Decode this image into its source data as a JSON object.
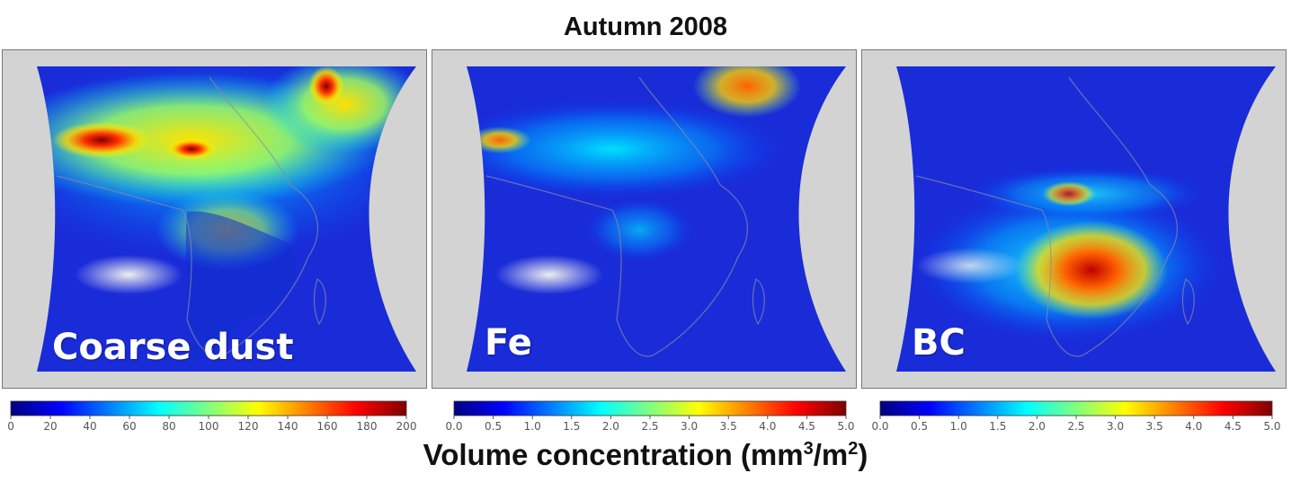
{
  "title": "Autumn 2008",
  "colors": {
    "land_mask": "#d3d3d3",
    "jet": [
      "#00007f",
      "#0000ff",
      "#007fff",
      "#00ffff",
      "#7fff7f",
      "#ffff00",
      "#ff7f00",
      "#ff0000",
      "#7f0000"
    ]
  },
  "panels": [
    {
      "label": "Coarse dust",
      "colorbar": {
        "min": 0,
        "max": 200,
        "ticks": [
          "0",
          "20",
          "40",
          "60",
          "80",
          "100",
          "120",
          "140",
          "160",
          "180",
          "200"
        ]
      }
    },
    {
      "label": "Fe",
      "colorbar": {
        "min": 0,
        "max": 5,
        "ticks": [
          "0.0",
          "0.5",
          "1.0",
          "1.5",
          "2.0",
          "2.5",
          "3.0",
          "3.5",
          "4.0",
          "4.5",
          "5.0"
        ]
      }
    },
    {
      "label": "BC",
      "colorbar": {
        "min": 0,
        "max": 5,
        "ticks": [
          "0.0",
          "0.5",
          "1.0",
          "1.5",
          "2.0",
          "2.5",
          "3.0",
          "3.5",
          "4.0",
          "4.5",
          "5.0"
        ]
      }
    }
  ],
  "xlabel": {
    "main": "Volume concentration (mm",
    "sup1": "3",
    "mid": "/m",
    "sup2": "2",
    "end": ")"
  }
}
